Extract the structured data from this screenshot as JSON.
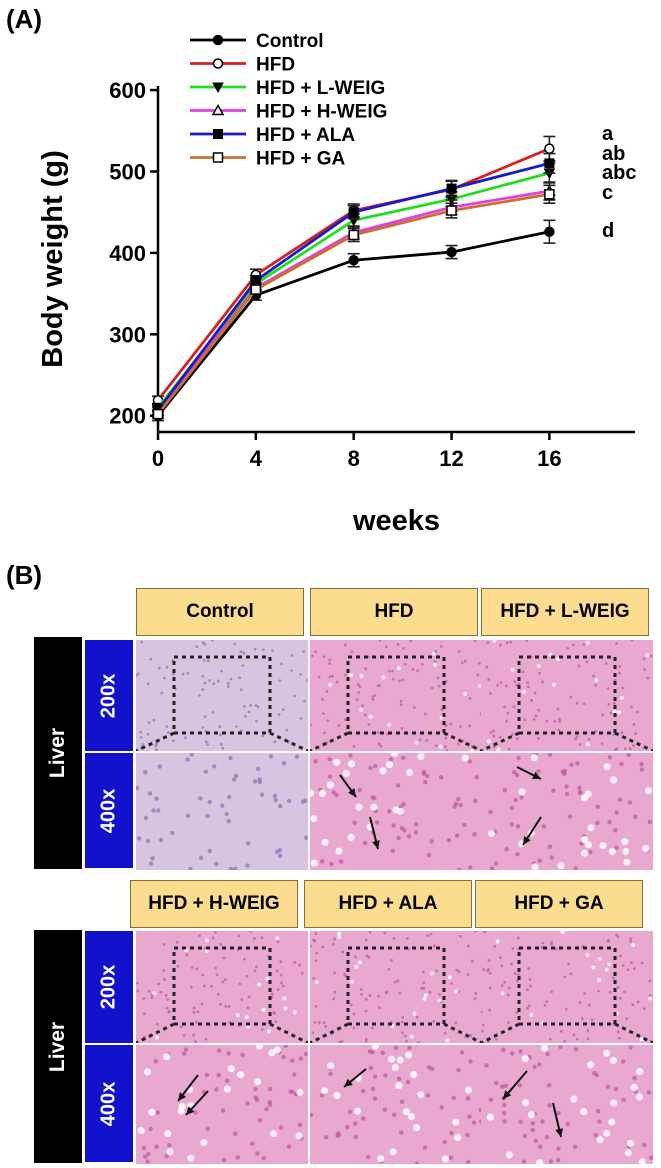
{
  "panel_a": {
    "label": "(A)"
  },
  "panel_b": {
    "label": "(B)",
    "organ": "Liver",
    "magnifications": [
      "200x",
      "400x"
    ],
    "rows": [
      {
        "groups": [
          "Control",
          "HFD",
          "HFD + L-WEIG"
        ]
      },
      {
        "groups": [
          "HFD + H-WEIG",
          "HFD + ALA",
          "HFD + GA"
        ]
      }
    ],
    "colors": {
      "header_fill": "#fcdc8e",
      "organ_fill": "#000000",
      "mag_fill": "#1212cc",
      "control_tissue": "#d8c4e0",
      "hfd_tissue": "#e8a8d0"
    }
  },
  "chart_data": {
    "type": "line",
    "title": "",
    "xlabel": "weeks",
    "ylabel": "Body weight (g)",
    "x": [
      0,
      4,
      8,
      12,
      16
    ],
    "xlim": [
      0,
      19.5
    ],
    "ylim": [
      180,
      605
    ],
    "yticks": [
      200,
      300,
      400,
      500,
      600
    ],
    "xticks": [
      0,
      4,
      8,
      12,
      16
    ],
    "legend_position": "top-left",
    "series": [
      {
        "name": "Control",
        "color": "#000000",
        "marker": "circle-filled",
        "values": [
          200,
          348,
          391,
          401,
          426
        ],
        "errors": [
          6,
          6,
          8,
          8,
          14
        ],
        "sig": "d"
      },
      {
        "name": "HFD",
        "color": "#d62020",
        "marker": "circle-open",
        "values": [
          219,
          373,
          452,
          478,
          528
        ],
        "errors": [
          5,
          7,
          8,
          10,
          15
        ],
        "sig": "a"
      },
      {
        "name": "HFD + L-WEIG",
        "color": "#22dd22",
        "marker": "triangle-down",
        "values": [
          210,
          362,
          440,
          466,
          498
        ],
        "errors": [
          5,
          7,
          8,
          9,
          12
        ],
        "sig": "abc"
      },
      {
        "name": "HFD + H-WEIG",
        "color": "#e040e0",
        "marker": "triangle-up-open",
        "values": [
          205,
          357,
          425,
          456,
          476
        ],
        "errors": [
          5,
          6,
          8,
          9,
          11
        ],
        "sig": "c"
      },
      {
        "name": "HFD + ALA",
        "color": "#1a1acc",
        "marker": "square-filled",
        "values": [
          207,
          366,
          450,
          479,
          510
        ],
        "errors": [
          5,
          6,
          8,
          10,
          12
        ],
        "sig": "ab"
      },
      {
        "name": "HFD + GA",
        "color": "#c87030",
        "marker": "square-open",
        "values": [
          202,
          355,
          422,
          452,
          472
        ],
        "errors": [
          5,
          6,
          8,
          9,
          11
        ],
        "sig": ""
      }
    ]
  }
}
